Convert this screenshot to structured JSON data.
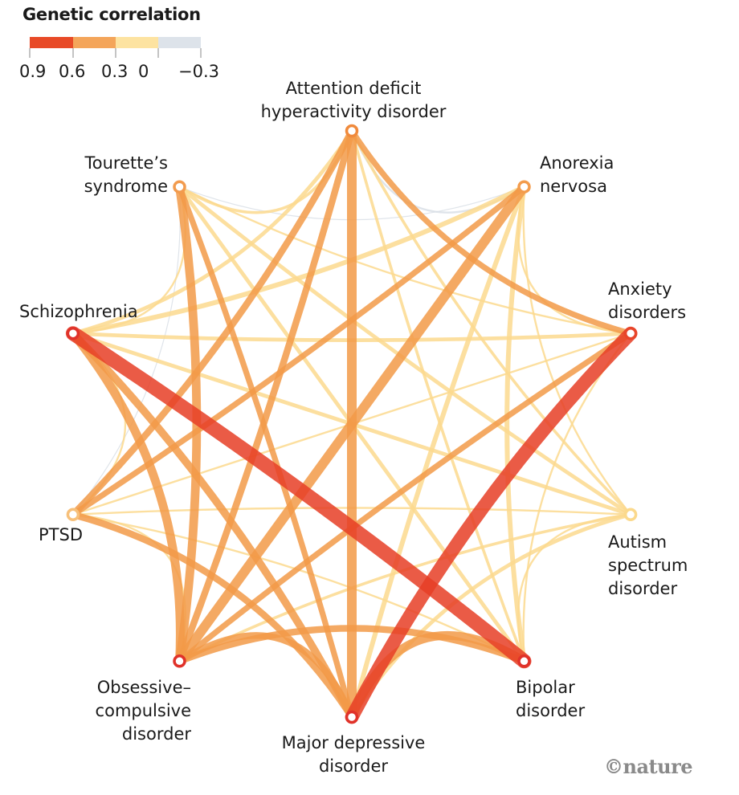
{
  "legend": {
    "title": "Genetic correlation",
    "ticks": [
      "0.9",
      "0.6",
      "0.3",
      "0",
      "−0.3"
    ],
    "colors": [
      "#e84a27",
      "#f4a55a",
      "#fde3a1",
      "#dde3ea"
    ]
  },
  "chart_data": {
    "type": "network",
    "nodes": [
      {
        "id": "adhd",
        "label": "Attention deficit\nhyperactivity disorder"
      },
      {
        "id": "anorexia",
        "label": "Anorexia\nnervosa"
      },
      {
        "id": "anxiety",
        "label": "Anxiety\ndisorders"
      },
      {
        "id": "autism",
        "label": "Autism\nspectrum\ndisorder"
      },
      {
        "id": "bipolar",
        "label": "Bipolar\ndisorder"
      },
      {
        "id": "mdd",
        "label": "Major depressive\ndisorder"
      },
      {
        "id": "ocd",
        "label": "Obsessive–\ncompulsive\ndisorder"
      },
      {
        "id": "ptsd",
        "label": "PTSD"
      },
      {
        "id": "schizophrenia",
        "label": "Schizophrenia"
      },
      {
        "id": "tourette",
        "label": "Tourette’s\nsyndrome"
      }
    ],
    "edges": [
      {
        "source": "schizophrenia",
        "target": "bipolar",
        "value": 0.75
      },
      {
        "source": "anxiety",
        "target": "mdd",
        "value": 0.7
      },
      {
        "source": "adhd",
        "target": "mdd",
        "value": 0.5
      },
      {
        "source": "anorexia",
        "target": "ocd",
        "value": 0.5
      },
      {
        "source": "tourette",
        "target": "ocd",
        "value": 0.45
      },
      {
        "source": "schizophrenia",
        "target": "ocd",
        "value": 0.45
      },
      {
        "source": "schizophrenia",
        "target": "mdd",
        "value": 0.4
      },
      {
        "source": "bipolar",
        "target": "mdd",
        "value": 0.45
      },
      {
        "source": "ocd",
        "target": "mdd",
        "value": 0.35
      },
      {
        "source": "ocd",
        "target": "bipolar",
        "value": 0.35
      },
      {
        "source": "adhd",
        "target": "ocd",
        "value": 0.35
      },
      {
        "source": "ptsd",
        "target": "mdd",
        "value": 0.35
      },
      {
        "source": "adhd",
        "target": "ptsd",
        "value": 0.35
      },
      {
        "source": "anorexia",
        "target": "ptsd",
        "value": 0.3
      },
      {
        "source": "adhd",
        "target": "anxiety",
        "value": 0.3
      },
      {
        "source": "anxiety",
        "target": "ocd",
        "value": 0.3
      },
      {
        "source": "tourette",
        "target": "mdd",
        "value": 0.3
      },
      {
        "source": "schizophrenia",
        "target": "anorexia",
        "value": 0.25
      },
      {
        "source": "anorexia",
        "target": "bipolar",
        "value": 0.25
      },
      {
        "source": "schizophrenia",
        "target": "autism",
        "value": 0.2
      },
      {
        "source": "schizophrenia",
        "target": "anxiety",
        "value": 0.2
      },
      {
        "source": "schizophrenia",
        "target": "adhd",
        "value": 0.2
      },
      {
        "source": "tourette",
        "target": "adhd",
        "value": 0.15
      },
      {
        "source": "tourette",
        "target": "bipolar",
        "value": 0.2
      },
      {
        "source": "tourette",
        "target": "autism",
        "value": 0.2
      },
      {
        "source": "autism",
        "target": "mdd",
        "value": 0.2
      },
      {
        "source": "autism",
        "target": "ocd",
        "value": 0.15
      },
      {
        "source": "adhd",
        "target": "bipolar",
        "value": 0.15
      },
      {
        "source": "anorexia",
        "target": "mdd",
        "value": 0.25
      },
      {
        "source": "adhd",
        "target": "autism",
        "value": 0.15
      },
      {
        "source": "anxiety",
        "target": "bipolar",
        "value": 0.1
      },
      {
        "source": "tourette",
        "target": "anxiety",
        "value": 0.1
      },
      {
        "source": "anxiety",
        "target": "ptsd",
        "value": 0.1
      },
      {
        "source": "autism",
        "target": "bipolar",
        "value": 0.1
      },
      {
        "source": "anorexia",
        "target": "anxiety",
        "value": 0.1
      },
      {
        "source": "anorexia",
        "target": "autism",
        "value": 0.1
      },
      {
        "source": "schizophrenia",
        "target": "tourette",
        "value": 0.1
      },
      {
        "source": "schizophrenia",
        "target": "ptsd",
        "value": 0.1
      },
      {
        "source": "ptsd",
        "target": "ocd",
        "value": 0.1
      },
      {
        "source": "ptsd",
        "target": "autism",
        "value": 0.1
      },
      {
        "source": "ptsd",
        "target": "bipolar",
        "value": 0.1
      },
      {
        "source": "tourette",
        "target": "ptsd",
        "value": -0.05
      },
      {
        "source": "adhd",
        "target": "anorexia",
        "value": -0.1
      },
      {
        "source": "tourette",
        "target": "anorexia",
        "value": -0.05
      }
    ]
  },
  "credit": "©nature"
}
